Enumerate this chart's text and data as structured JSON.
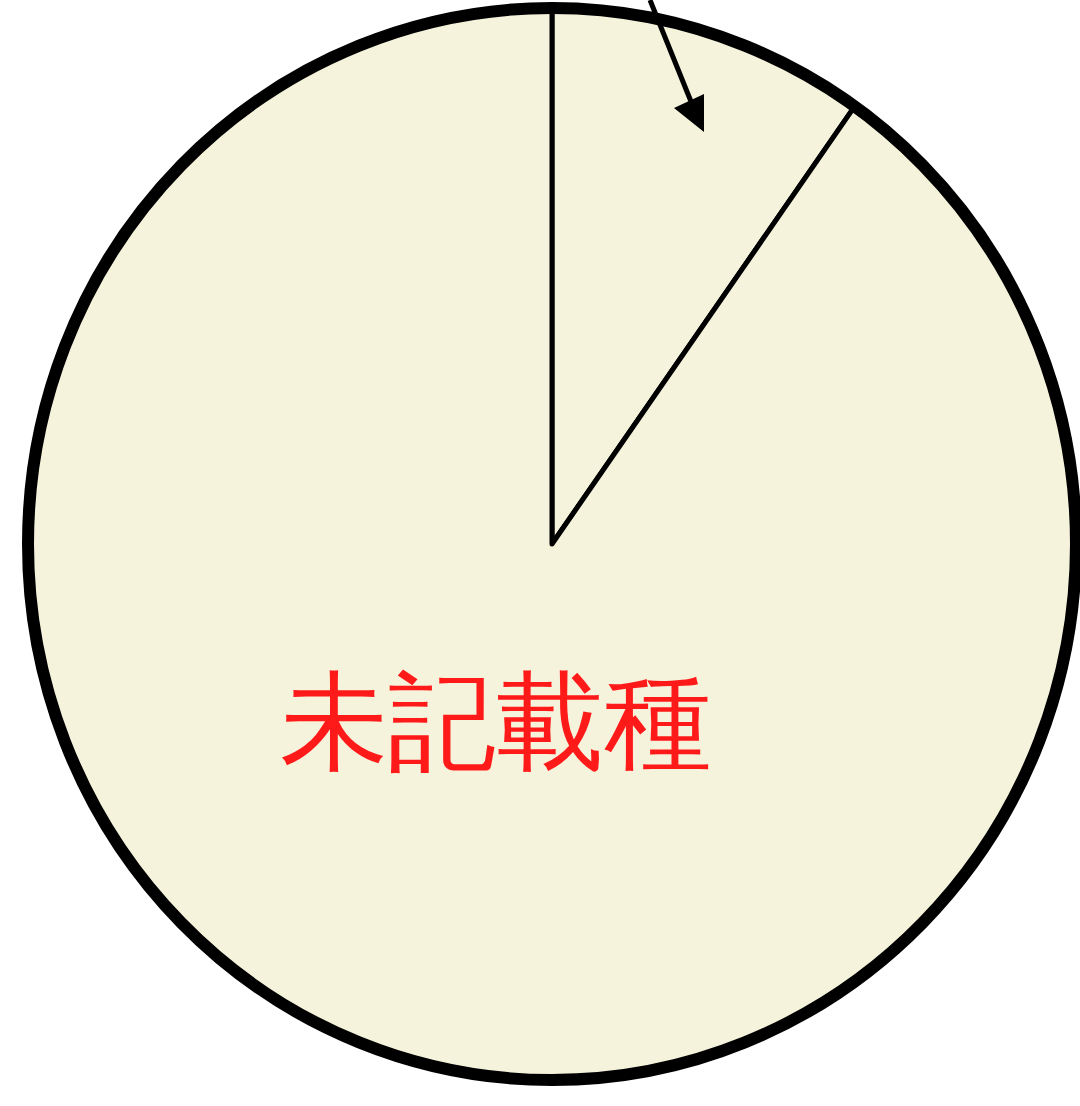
{
  "chart_data": {
    "type": "pie",
    "categories": [
      null,
      "未記載種"
    ],
    "values": [
      9.8,
      90.2
    ],
    "colors": [
      "#f6f3dc",
      "#f6f3dc"
    ]
  }
}
